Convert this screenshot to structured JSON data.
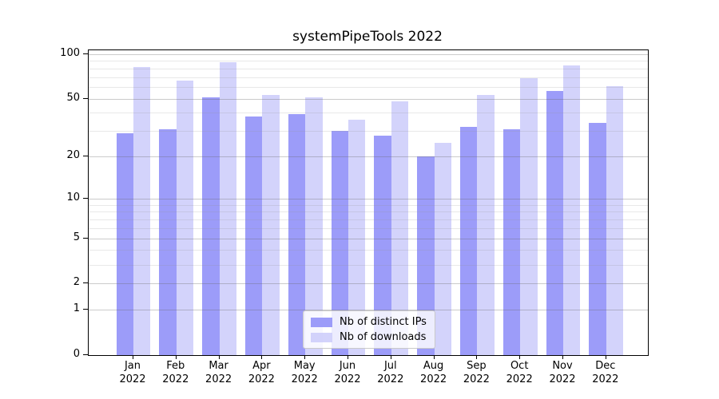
{
  "title": "systemPipeTools 2022",
  "chart_data": {
    "type": "bar",
    "title": "systemPipeTools 2022",
    "categories": [
      "Jan",
      "Feb",
      "Mar",
      "Apr",
      "May",
      "Jun",
      "Jul",
      "Aug",
      "Sep",
      "Oct",
      "Nov",
      "Dec"
    ],
    "year": "2022",
    "series": [
      {
        "name": "Nb of distinct IPs",
        "color": "rgba(148,148,248,0.92)",
        "values": [
          29,
          31,
          51,
          38,
          39,
          30,
          28,
          20,
          32,
          31,
          56,
          34
        ]
      },
      {
        "name": "Nb of downloads",
        "color": "rgba(205,205,250,0.88)",
        "values": [
          82,
          66,
          88,
          53,
          51,
          36,
          48,
          25,
          53,
          69,
          84,
          61
        ]
      }
    ],
    "yscale": "log1p",
    "ylim": [
      0,
      106
    ],
    "y_major_ticks": [
      0,
      1,
      2,
      5,
      10,
      20,
      50,
      100
    ],
    "y_minor_ticks": [
      3,
      4,
      6,
      7,
      8,
      9,
      30,
      40,
      60,
      70,
      80,
      90
    ],
    "grid": true,
    "legend_position": "lower center"
  }
}
